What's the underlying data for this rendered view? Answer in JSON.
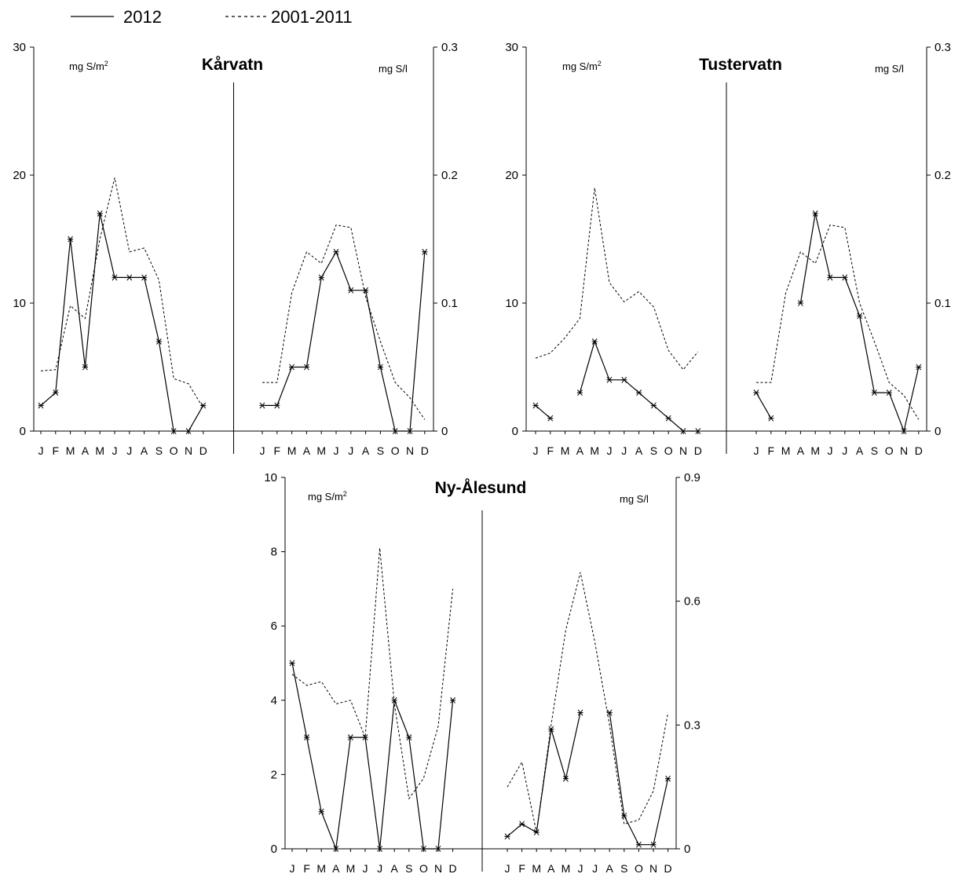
{
  "legend": {
    "items": [
      {
        "label": "2012",
        "style": "solid"
      },
      {
        "label": "2001-2011",
        "style": "dashed"
      }
    ]
  },
  "chart_data": [
    {
      "type": "line",
      "title": "Kårvatn",
      "left_unit": "mg S/m",
      "left_unit_sup": "2",
      "right_unit": "mg S/l",
      "months": [
        "J",
        "F",
        "M",
        "A",
        "M",
        "J",
        "J",
        "A",
        "S",
        "O",
        "N",
        "D"
      ],
      "left_axis": {
        "ylim": [
          0,
          30
        ],
        "ticks": [
          "0",
          "10",
          "20",
          "30"
        ]
      },
      "right_axis": {
        "ylim": [
          0,
          0.3
        ],
        "ticks": [
          "0",
          "0.1",
          "0.2",
          "0.3"
        ]
      },
      "deposition": {
        "series": [
          {
            "name": "2012",
            "values": [
              2,
              3,
              15,
              5,
              17,
              12,
              12,
              12,
              7,
              0,
              0,
              2
            ]
          },
          {
            "name": "2001-2011",
            "values": [
              4.7,
              4.8,
              9.8,
              8.8,
              15,
              19.8,
              14,
              14.3,
              11.8,
              4.1,
              3.7,
              1.8
            ]
          }
        ]
      },
      "concentration": {
        "series": [
          {
            "name": "2012",
            "values": [
              0.02,
              0.02,
              0.05,
              0.05,
              0.12,
              0.14,
              0.11,
              0.11,
              0.05,
              0,
              0,
              0.14
            ]
          },
          {
            "name": "2001-2011",
            "values": [
              0.038,
              0.038,
              0.108,
              0.14,
              0.131,
              0.161,
              0.159,
              0.105,
              0.07,
              0.038,
              0.026,
              0.009
            ]
          }
        ]
      }
    },
    {
      "type": "line",
      "title": "Tustervatn",
      "left_unit": "mg S/m",
      "left_unit_sup": "2",
      "right_unit": "mg S/l",
      "months": [
        "J",
        "F",
        "M",
        "A",
        "M",
        "J",
        "J",
        "A",
        "S",
        "O",
        "N",
        "D"
      ],
      "left_axis": {
        "ylim": [
          0,
          30
        ],
        "ticks": [
          "0",
          "10",
          "20",
          "30"
        ]
      },
      "right_axis": {
        "ylim": [
          0,
          0.3
        ],
        "ticks": [
          "0",
          "0.1",
          "0.2",
          "0.3"
        ]
      },
      "deposition": {
        "series": [
          {
            "name": "2012",
            "values": [
              2,
              1,
              null,
              3,
              7,
              4,
              4,
              3,
              2,
              1,
              0,
              0
            ]
          },
          {
            "name": "2001-2011",
            "values": [
              5.7,
              6.1,
              7.3,
              8.8,
              19,
              11.6,
              10.1,
              10.9,
              9.7,
              6.3,
              4.8,
              6.2
            ]
          }
        ]
      },
      "concentration": {
        "series": [
          {
            "name": "2012",
            "values": [
              0.03,
              0.01,
              null,
              0.1,
              0.17,
              0.12,
              0.12,
              0.09,
              0.03,
              0.03,
              0,
              0.05
            ]
          },
          {
            "name": "2001-2011",
            "values": [
              0.038,
              0.038,
              0.108,
              0.14,
              0.131,
              0.161,
              0.159,
              0.1,
              0.07,
              0.038,
              0.028,
              0.009
            ]
          }
        ]
      }
    },
    {
      "type": "line",
      "title": "Ny-Ålesund",
      "left_unit": "mg S/m",
      "left_unit_sup": "2",
      "right_unit": "mg S/l",
      "months": [
        "J",
        "F",
        "M",
        "A",
        "M",
        "J",
        "J",
        "A",
        "S",
        "O",
        "N",
        "D"
      ],
      "left_axis": {
        "ylim": [
          0,
          10
        ],
        "ticks": [
          "0",
          "2",
          "4",
          "6",
          "8",
          "10"
        ]
      },
      "right_axis": {
        "ylim": [
          0,
          0.9
        ],
        "ticks": [
          "0",
          "0.3",
          "0.6",
          "0.9"
        ]
      },
      "deposition": {
        "series": [
          {
            "name": "2012",
            "values": [
              5,
              3,
              1,
              0,
              3,
              3,
              0,
              4,
              3,
              0,
              0,
              4
            ]
          },
          {
            "name": "2001-2011",
            "values": [
              4.7,
              4.4,
              4.5,
              3.9,
              4,
              3,
              8.1,
              3.9,
              1.35,
              1.9,
              3.3,
              7
            ]
          }
        ]
      },
      "concentration": {
        "series": [
          {
            "name": "2012",
            "values": [
              0.03,
              0.06,
              0.04,
              0.29,
              0.17,
              0.33,
              null,
              0.33,
              0.08,
              0.01,
              0.01,
              0.17
            ]
          },
          {
            "name": "2001-2011",
            "values": [
              0.15,
              0.21,
              0.04,
              0.3,
              0.53,
              0.67,
              0.5,
              0.3,
              0.06,
              0.07,
              0.14,
              0.33
            ]
          }
        ]
      }
    }
  ]
}
